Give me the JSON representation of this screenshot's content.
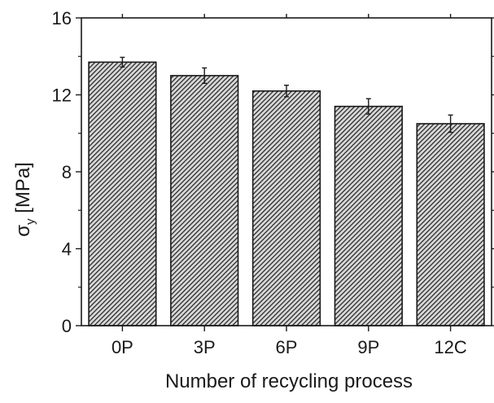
{
  "chart_data": {
    "type": "bar",
    "categories": [
      "0P",
      "3P",
      "6P",
      "9P",
      "12C"
    ],
    "values": [
      13.7,
      13.0,
      12.2,
      11.4,
      10.5
    ],
    "errors": [
      0.25,
      0.4,
      0.3,
      0.4,
      0.45
    ],
    "xlabel": "Number of recycling process",
    "ylabel": "σy [MPa]",
    "ylabel_main": "σ",
    "ylabel_sub": "y",
    "ylabel_unit": " [MPa]",
    "ylim": [
      0,
      16
    ],
    "yticks": [
      0,
      4,
      8,
      12,
      16
    ],
    "ytick_labels": [
      "0",
      "4",
      "8",
      "12",
      "16"
    ],
    "bar_fill": "hatched dark gray",
    "grid": false,
    "legend": "none"
  },
  "colors": {
    "axis": "#1a1a1a",
    "bar_hatch_dark": "#2b2b2b",
    "bar_hatch_light": "#d9d9d9"
  }
}
